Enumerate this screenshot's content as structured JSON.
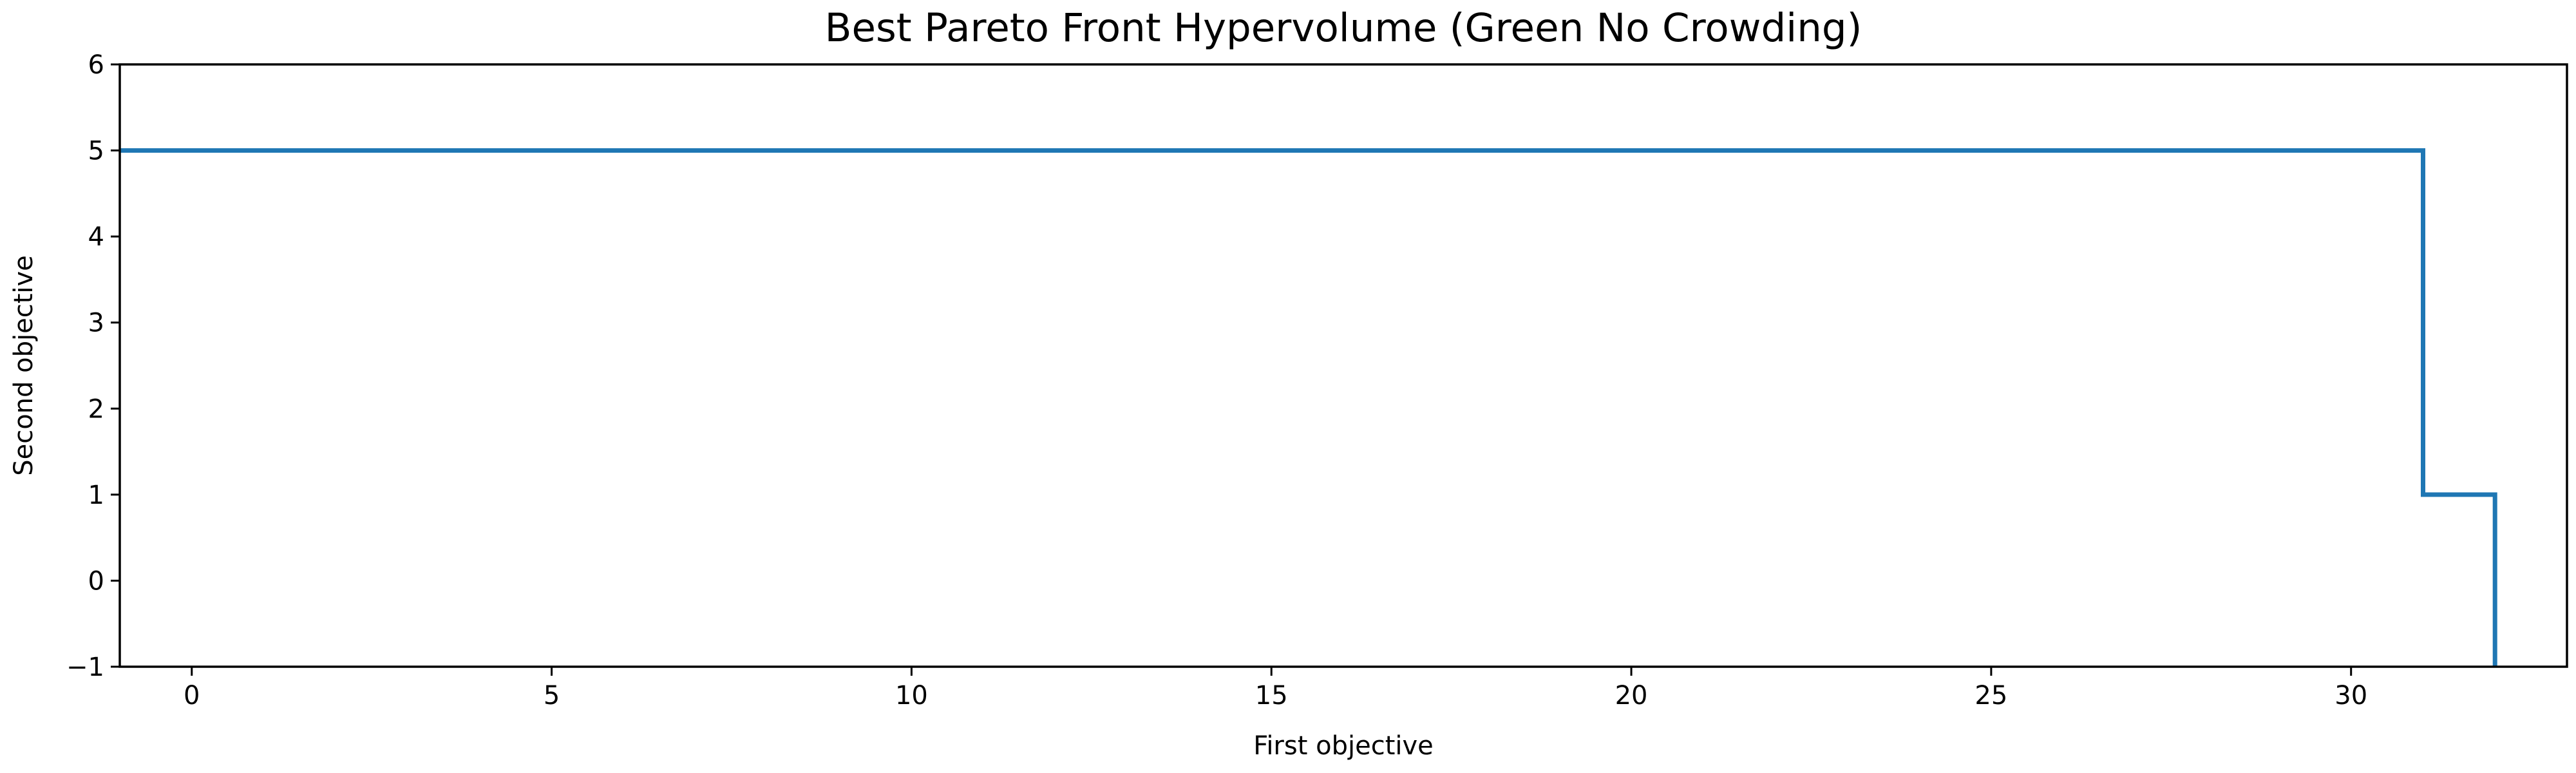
{
  "chart_data": {
    "type": "line",
    "drawstyle": "steps-post",
    "title": "Best Pareto Front Hypervolume (Green No Crowding)",
    "xlabel": "First objective",
    "ylabel": "Second objective",
    "xlim": [
      -1,
      33
    ],
    "ylim": [
      -1,
      6
    ],
    "xticks": [
      0,
      5,
      10,
      15,
      20,
      25,
      30
    ],
    "yticks": [
      -1,
      0,
      1,
      2,
      3,
      4,
      5,
      6
    ],
    "grid": false,
    "series": [
      {
        "color": "#1f77b4",
        "points": [
          {
            "x": -1,
            "y": 5
          },
          {
            "x": 31,
            "y": 5
          },
          {
            "x": 31,
            "y": 1
          },
          {
            "x": 32,
            "y": 1
          },
          {
            "x": 32,
            "y": -1
          }
        ]
      }
    ]
  }
}
